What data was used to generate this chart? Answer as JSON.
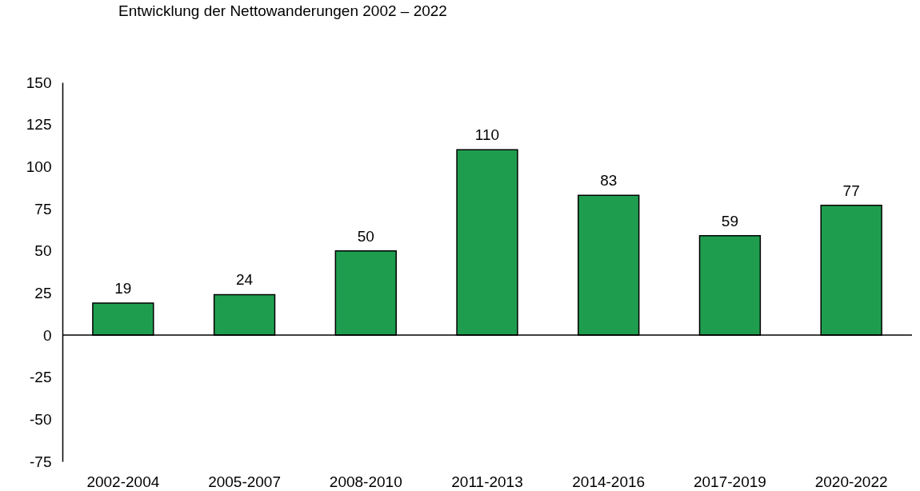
{
  "chart_data": {
    "type": "bar",
    "title": "Entwicklung der Nettowanderungen 2002 – 2022",
    "categories": [
      "2002-2004",
      "2005-2007",
      "2008-2010",
      "2011-2013",
      "2014-2016",
      "2017-2019",
      "2020-2022"
    ],
    "values": [
      19,
      24,
      50,
      110,
      83,
      59,
      77
    ],
    "color": "#1f9d4f",
    "ylim": [
      -75,
      150
    ],
    "yticks": [
      -75,
      -50,
      -25,
      0,
      25,
      50,
      75,
      100,
      125,
      150
    ],
    "ref_lines": [
      {
        "axis": "y",
        "value": 0,
        "color": "#000000"
      }
    ],
    "data_labels": true,
    "grid": false
  }
}
